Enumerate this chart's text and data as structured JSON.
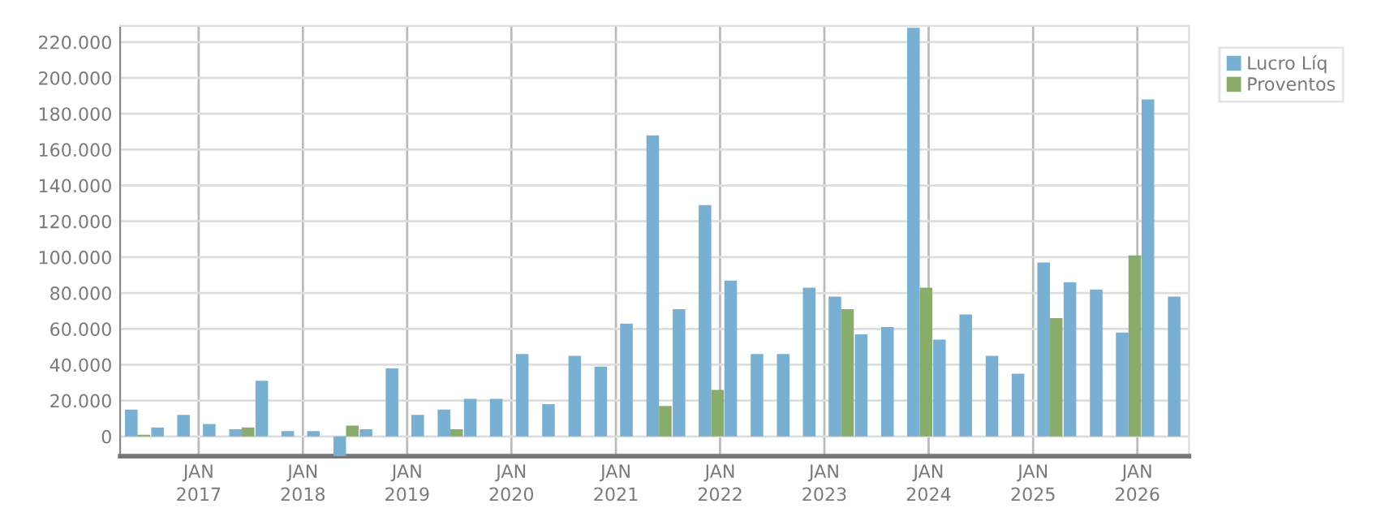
{
  "chart_data": {
    "type": "bar",
    "x": [
      "2016-06",
      "2016-09",
      "2016-12",
      "2017-03",
      "2017-06",
      "2017-09",
      "2017-12",
      "2018-03",
      "2018-06",
      "2018-09",
      "2018-12",
      "2019-03",
      "2019-06",
      "2019-09",
      "2019-12",
      "2020-03",
      "2020-06",
      "2020-09",
      "2020-12",
      "2021-03",
      "2021-06",
      "2021-09",
      "2021-12",
      "2022-03",
      "2022-06",
      "2022-09",
      "2022-12",
      "2023-03",
      "2023-06",
      "2023-09",
      "2023-12",
      "2024-03",
      "2024-06",
      "2024-09",
      "2024-12",
      "2025-03",
      "2025-06",
      "2025-09",
      "2025-12",
      "2026-03",
      "2026-06"
    ],
    "series": [
      {
        "name": "Lucro Líq",
        "color": "#77b0d2",
        "values": [
          15000,
          5000,
          12000,
          7000,
          4000,
          31000,
          3000,
          3000,
          -11000,
          4000,
          38000,
          12000,
          15000,
          21000,
          21000,
          46000,
          18000,
          45000,
          39000,
          63000,
          168000,
          71000,
          129000,
          87000,
          46000,
          46000,
          83000,
          78000,
          57000,
          61000,
          228000,
          54000,
          68000,
          45000,
          35000,
          97000,
          86000,
          82000,
          58000,
          188000,
          78000
        ]
      },
      {
        "name": "Proventos",
        "color": "#88ad6a",
        "values": [
          1000,
          0,
          0,
          0,
          5000,
          0,
          0,
          0,
          6000,
          0,
          0,
          0,
          4000,
          0,
          0,
          0,
          0,
          0,
          0,
          0,
          17000,
          0,
          26000,
          0,
          0,
          0,
          0,
          71000,
          0,
          0,
          83000,
          0,
          0,
          0,
          0,
          66000,
          0,
          0,
          101000,
          0,
          0
        ]
      }
    ],
    "xlim": [
      "2016-04",
      "2026-07"
    ],
    "xticks": [
      {
        "value": "2017-01",
        "label": "JAN\n2017"
      },
      {
        "value": "2018-01",
        "label": "JAN\n2018"
      },
      {
        "value": "2019-01",
        "label": "JAN\n2019"
      },
      {
        "value": "2020-01",
        "label": "JAN\n2020"
      },
      {
        "value": "2021-01",
        "label": "JAN\n2021"
      },
      {
        "value": "2022-01",
        "label": "JAN\n2022"
      },
      {
        "value": "2023-01",
        "label": "JAN\n2023"
      },
      {
        "value": "2024-01",
        "label": "JAN\n2024"
      },
      {
        "value": "2025-01",
        "label": "JAN\n2025"
      },
      {
        "value": "2026-01",
        "label": "JAN\n2026"
      }
    ],
    "ylim": [
      -11000,
      229000
    ],
    "yticks": [
      0,
      {
        "value": 20000,
        "label": "20.000"
      },
      {
        "value": 40000,
        "label": "40.000"
      },
      {
        "value": 60000,
        "label": "60.000"
      },
      {
        "value": 80000,
        "label": "80.000"
      },
      {
        "value": 100000,
        "label": "100.000"
      },
      {
        "value": 120000,
        "label": "120.000"
      },
      {
        "value": 140000,
        "label": "140.000"
      },
      {
        "value": 160000,
        "label": "160.000"
      },
      {
        "value": 180000,
        "label": "180.000"
      },
      {
        "value": 200000,
        "label": "200.000"
      },
      {
        "value": 220000,
        "label": "220.000"
      }
    ],
    "grid": true,
    "legend": "top right"
  }
}
